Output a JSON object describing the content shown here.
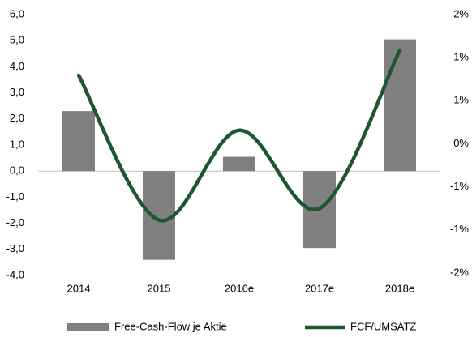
{
  "chart_data": {
    "type": "bar-line",
    "categories": [
      "2014",
      "2015",
      "2016e",
      "2017e",
      "2018e"
    ],
    "series": [
      {
        "name": "Free-Cash-Flow je Aktie",
        "color": "#808080",
        "values": [
          2.3,
          -3.4,
          0.55,
          -2.95,
          5.05
        ]
      },
      {
        "name": "FCF/UMSATZ",
        "color": "#1e5631",
        "axis": "y2",
        "values": [
          1.06,
          -1.18,
          0.21,
          -1.0,
          1.45
        ]
      }
    ],
    "ylim": [
      -4,
      6
    ],
    "yticks": [
      {
        "value": 6,
        "label": "6,0"
      },
      {
        "value": 5,
        "label": "5,0"
      },
      {
        "value": 4,
        "label": "4,0"
      },
      {
        "value": 3,
        "label": "3,0"
      },
      {
        "value": 2,
        "label": "2,0"
      },
      {
        "value": 1,
        "label": "1,0"
      },
      {
        "value": 0,
        "label": "0,0"
      },
      {
        "value": -1,
        "label": "-1,0"
      },
      {
        "value": -2,
        "label": "-2,0"
      },
      {
        "value": -3,
        "label": "-3,0"
      },
      {
        "value": -4,
        "label": "-4,0"
      }
    ],
    "y2lim": [
      -2,
      2
    ],
    "y2ticks": [
      {
        "value": 2,
        "label": "2%"
      },
      {
        "value": 1.333,
        "label": "1%"
      },
      {
        "value": 0.667,
        "label": "1%"
      },
      {
        "value": 0,
        "label": "0%"
      },
      {
        "value": -0.667,
        "label": "-1%"
      },
      {
        "value": -1.333,
        "label": "-1%"
      },
      {
        "value": -2,
        "label": "-2%"
      }
    ],
    "legend": "bottom"
  }
}
